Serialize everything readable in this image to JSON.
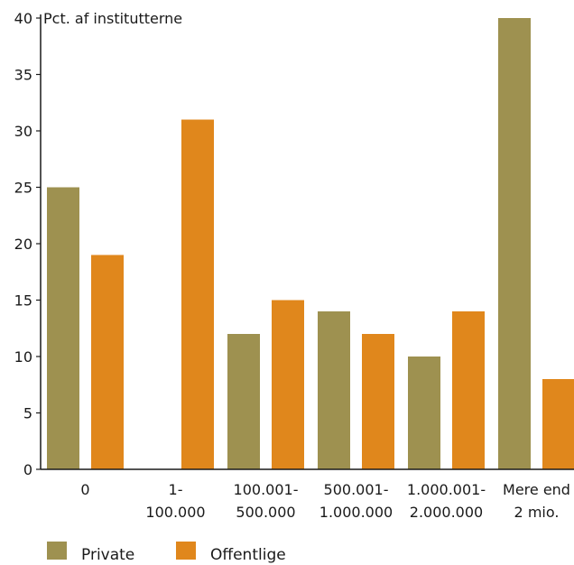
{
  "chart_data": {
    "type": "bar",
    "ylabel": "Pct. af institutterne",
    "ylim": [
      0,
      40
    ],
    "yticks": [
      0,
      5,
      10,
      15,
      20,
      25,
      30,
      35,
      40
    ],
    "categories": [
      [
        "0"
      ],
      [
        "1-",
        "100.000"
      ],
      [
        "100.001-",
        "500.000"
      ],
      [
        "500.001-",
        "1.000.000"
      ],
      [
        "1.000.001-",
        "2.000.000"
      ],
      [
        "Mere end",
        "2 mio."
      ]
    ],
    "series": [
      {
        "name": "Private",
        "color": "#9e9150",
        "values": [
          25,
          0,
          12,
          14,
          10,
          40
        ]
      },
      {
        "name": "Offentlige",
        "color": "#e0871c",
        "values": [
          19,
          31,
          15,
          12,
          14,
          8
        ]
      }
    ],
    "legend_position": "bottom-left",
    "grid": false
  }
}
